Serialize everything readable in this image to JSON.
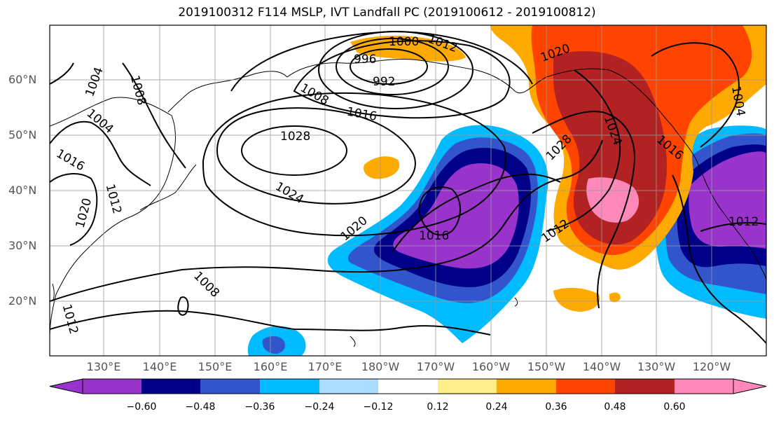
{
  "title": "2019100312 F114 MSLP, IVT Landfall PC (2019100612 - 2019100812)",
  "lat_labels": [
    "60°N",
    "50°N",
    "40°N",
    "30°N",
    "20°N"
  ],
  "lon_labels": [
    "130°E",
    "140°E",
    "150°E",
    "160°E",
    "170°E",
    "180°W",
    "170°W",
    "160°W",
    "150°W",
    "140°W",
    "130°W",
    "120°W"
  ],
  "colorbar": {
    "colors": [
      "#9933cc",
      "#000088",
      "#3355cc",
      "#00bbff",
      "#aaddff",
      "#ffffff",
      "#ffee88",
      "#ffaa00",
      "#ff4400",
      "#b22222",
      "#ff88bb"
    ],
    "ticks": [
      "−0.60",
      "−0.48",
      "−0.36",
      "−0.24",
      "−0.12",
      "0.12",
      "0.24",
      "0.36",
      "0.48",
      "0.60"
    ]
  },
  "isobar_labels": [
    "1000",
    "996",
    "992",
    "1008",
    "1016",
    "1028",
    "1024",
    "1020",
    "1016",
    "1012",
    "1008",
    "1004",
    "1004",
    "1016",
    "1012",
    "1020",
    "1012",
    "1020",
    "1024",
    "1028",
    "1016",
    "1012",
    "1004",
    "1012",
    "1008"
  ]
}
